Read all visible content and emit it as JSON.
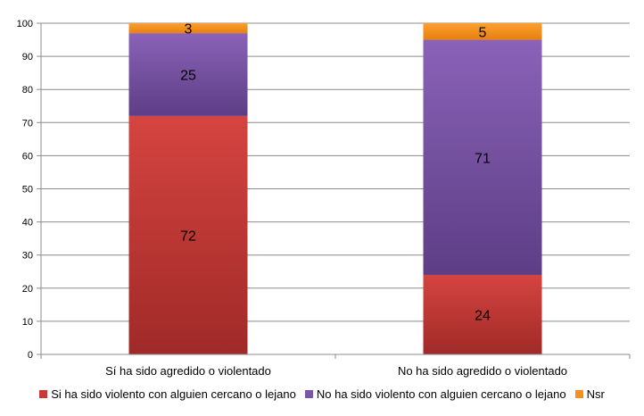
{
  "chart_data": {
    "type": "bar",
    "stacked": true,
    "title": "",
    "xlabel": "",
    "ylabel": "",
    "ylim": [
      0,
      100
    ],
    "yticks": [
      0,
      10,
      20,
      30,
      40,
      50,
      60,
      70,
      80,
      90,
      100
    ],
    "grid": true,
    "legend_position": "bottom",
    "categories": [
      "Sí ha sido agredido o violentado",
      "No ha sido agredido o violentado"
    ],
    "series": [
      {
        "name": "Si ha sido violento con alguien cercano o lejano",
        "values": [
          72,
          24
        ],
        "color": "#c73a36"
      },
      {
        "name": "No ha sido violento con alguien cercano o lejano",
        "values": [
          25,
          71
        ],
        "color": "#7a55a8"
      },
      {
        "name": "Nsr",
        "values": [
          3,
          5
        ],
        "color": "#f5901e"
      }
    ]
  }
}
